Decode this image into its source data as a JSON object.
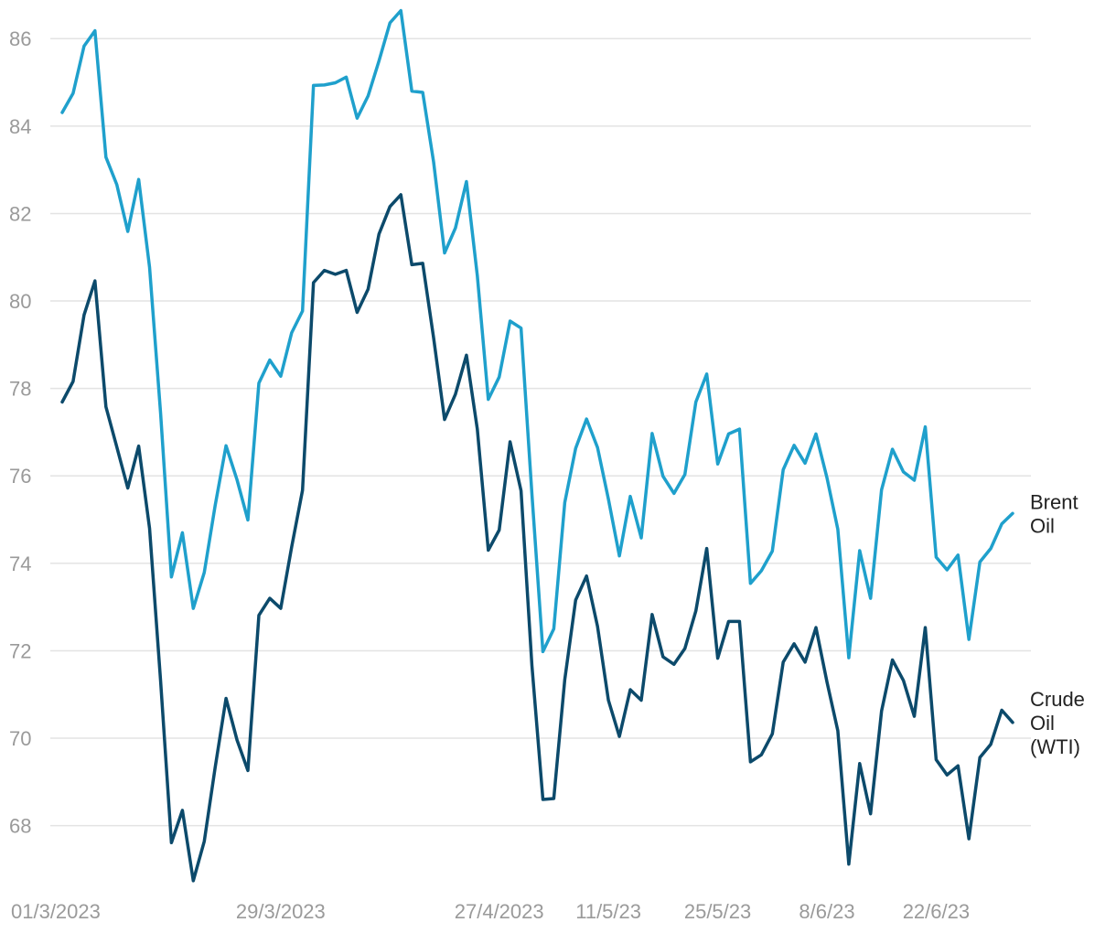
{
  "chart_data": {
    "type": "line",
    "title": "",
    "xlabel": "",
    "ylabel": "",
    "ylim": [
      66.8,
      86.8
    ],
    "yticks": [
      "68",
      "70",
      "72",
      "74",
      "76",
      "78",
      "80",
      "82",
      "84",
      "86"
    ],
    "xticks": [
      {
        "label": "01/3/2023",
        "index": 0
      },
      {
        "label": "29/3/2023",
        "index": 20
      },
      {
        "label": "27/4/2023",
        "index": 40
      },
      {
        "label": "11/5/23",
        "index": 50
      },
      {
        "label": "25/5/23",
        "index": 60
      },
      {
        "label": "8/6/23",
        "index": 70
      },
      {
        "label": "22/6/23",
        "index": 80
      }
    ],
    "grid": true,
    "legend": "inline-right",
    "series": [
      {
        "label_lines": [
          "Brent",
          "Oil"
        ],
        "color": "#1fa0cc",
        "values": [
          84.31,
          84.75,
          85.83,
          86.18,
          83.29,
          82.66,
          81.59,
          82.78,
          80.77,
          77.45,
          73.69,
          74.7,
          72.97,
          73.79,
          75.32,
          76.69,
          75.91,
          74.99,
          78.12,
          78.65,
          78.28,
          79.27,
          79.77,
          84.93,
          84.94,
          84.99,
          85.12,
          84.18,
          84.69,
          85.49,
          86.36,
          86.64,
          84.8,
          84.77,
          83.18,
          81.1,
          81.67,
          82.73,
          80.58,
          77.75,
          78.26,
          79.54,
          79.38,
          75.58,
          71.98,
          72.5,
          75.39,
          76.63,
          77.3,
          76.65,
          75.47,
          74.17,
          75.53,
          74.58,
          76.97,
          75.99,
          75.6,
          76.03,
          77.69,
          78.33,
          76.27,
          76.96,
          77.07,
          73.54,
          73.83,
          74.28,
          76.14,
          76.7,
          76.29,
          76.96,
          75.96,
          74.78,
          71.84,
          74.29,
          73.2,
          75.68,
          76.61,
          76.09,
          75.9,
          77.12,
          74.14,
          73.85,
          74.19,
          72.26,
          74.03,
          74.34,
          74.9,
          75.14
        ]
      },
      {
        "label_lines": [
          "Crude",
          "Oil",
          "(WTI)"
        ],
        "color": "#0c4a6b",
        "values": [
          77.69,
          78.16,
          79.68,
          80.46,
          77.58,
          76.66,
          75.72,
          76.68,
          74.8,
          71.33,
          67.61,
          68.35,
          66.74,
          67.64,
          69.33,
          70.91,
          69.96,
          69.26,
          72.81,
          73.2,
          72.97,
          74.37,
          75.67,
          80.42,
          80.7,
          80.61,
          80.7,
          79.74,
          80.27,
          81.53,
          82.16,
          82.43,
          80.83,
          80.86,
          79.16,
          77.29,
          77.87,
          78.76,
          77.07,
          74.3,
          74.76,
          76.78,
          75.66,
          71.66,
          68.6,
          68.62,
          71.34,
          73.16,
          73.71,
          72.56,
          70.87,
          70.04,
          71.11,
          70.87,
          72.83,
          71.86,
          71.69,
          72.05,
          72.91,
          74.34,
          71.83,
          72.67,
          72.67,
          69.46,
          69.62,
          70.1,
          71.74,
          72.16,
          71.74,
          72.53,
          71.29,
          70.17,
          67.12,
          69.42,
          68.27,
          70.62,
          71.79,
          71.32,
          70.5,
          72.53,
          69.51,
          69.16,
          69.37,
          67.7,
          69.56,
          69.86,
          70.64,
          70.36
        ]
      }
    ]
  }
}
